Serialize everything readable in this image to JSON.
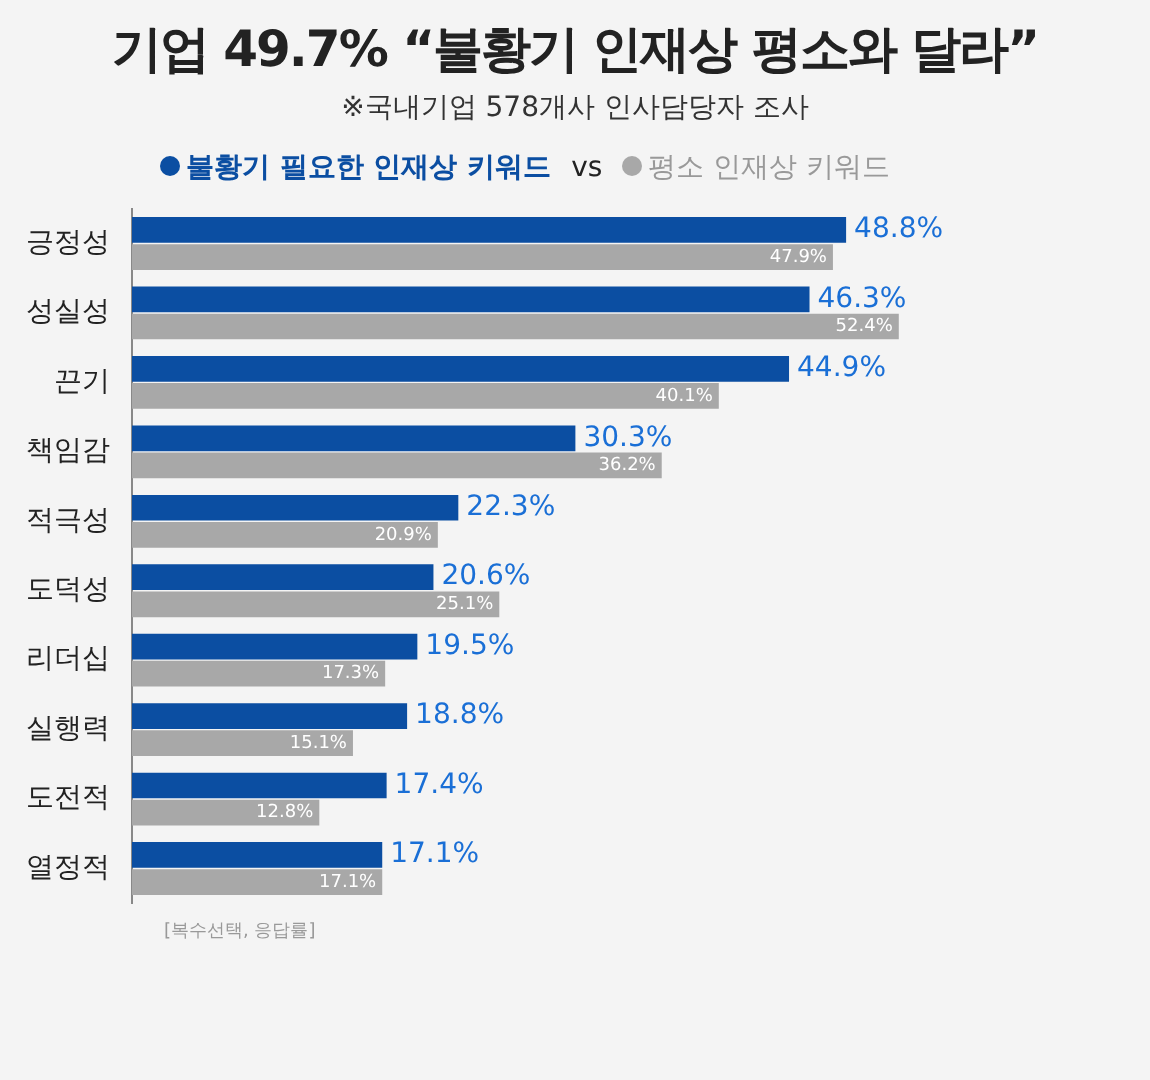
{
  "chart_data": {
    "type": "bar",
    "orientation": "horizontal",
    "title": "기업 49.7% “불황기 인재상 평소와 달라”",
    "subtitle": "※국내기업 578개사 인사담당자 조사",
    "categories": [
      "긍정성",
      "성실성",
      "끈기",
      "책임감",
      "적극성",
      "도덕성",
      "리더십",
      "실행력",
      "도전적",
      "열정적"
    ],
    "series": [
      {
        "name": "불황기 필요한 인재상 키워드",
        "color": "#0b4ea2",
        "values": [
          48.8,
          46.3,
          44.9,
          30.3,
          22.3,
          20.6,
          19.5,
          18.8,
          17.4,
          17.1
        ],
        "value_labels": [
          "48.8%",
          "46.3%",
          "44.9%",
          "30.3%",
          "22.3%",
          "20.6%",
          "19.5%",
          "18.8%",
          "17.4%",
          "17.1%"
        ]
      },
      {
        "name": "평소 인재상 키워드",
        "color": "#a8a8a8",
        "values": [
          47.9,
          52.4,
          40.1,
          36.2,
          20.9,
          25.1,
          17.3,
          15.1,
          12.8,
          17.1
        ],
        "value_labels": [
          "47.9%",
          "52.4%",
          "40.1%",
          "36.2%",
          "20.9%",
          "25.1%",
          "17.3%",
          "15.1%",
          "12.8%",
          "17.1%"
        ]
      }
    ],
    "legend": "top left",
    "grid": false,
    "annotations": [
      "vs",
      "[복수선택, 응답률]"
    ]
  }
}
